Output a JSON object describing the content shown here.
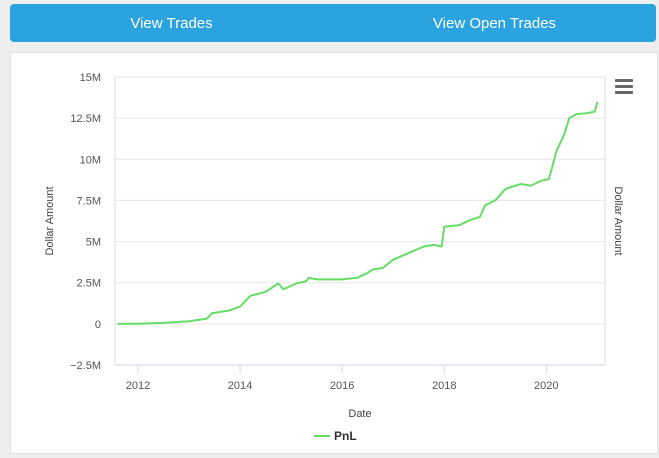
{
  "topbar": {
    "trades_label": "View Trades",
    "open_trades_label": "View Open Trades"
  },
  "menu": {
    "icon": "hamburger-icon"
  },
  "colors": {
    "topbar": "#2aa3de",
    "series": "#66dd66",
    "grid": "#e6e6e6"
  },
  "chart_data": {
    "type": "line",
    "xlabel": "Date",
    "ylabel": "Dollar Amount",
    "ylabel_right": "Dollar Amount",
    "xlim": [
      2011.55,
      2021.15
    ],
    "ylim": [
      -2500000,
      15000000
    ],
    "x_ticks": [
      2012,
      2014,
      2016,
      2018,
      2020
    ],
    "y_ticks": [
      -2500000,
      0,
      2500000,
      5000000,
      7500000,
      10000000,
      12500000,
      15000000
    ],
    "y_tick_labels": [
      "−2.5M",
      "0",
      "2.5M",
      "5M",
      "7.5M",
      "10M",
      "12.5M",
      "15M"
    ],
    "grid": true,
    "legend": "bottom-center",
    "series": [
      {
        "name": "PnL",
        "x": [
          2011.6,
          2012.0,
          2012.5,
          2013.0,
          2013.35,
          2013.45,
          2013.8,
          2014.0,
          2014.2,
          2014.5,
          2014.75,
          2014.85,
          2015.1,
          2015.3,
          2015.35,
          2015.5,
          2015.8,
          2016.0,
          2016.3,
          2016.5,
          2016.6,
          2016.8,
          2017.0,
          2017.3,
          2017.6,
          2017.8,
          2017.95,
          2018.0,
          2018.3,
          2018.5,
          2018.7,
          2018.8,
          2019.0,
          2019.2,
          2019.5,
          2019.7,
          2019.9,
          2020.05,
          2020.2,
          2020.35,
          2020.45,
          2020.6,
          2020.8,
          2020.95,
          2021.0
        ],
        "values": [
          0,
          10000,
          60000,
          160000,
          320000,
          650000,
          820000,
          1050000,
          1700000,
          1950000,
          2450000,
          2100000,
          2450000,
          2600000,
          2800000,
          2700000,
          2700000,
          2700000,
          2800000,
          3100000,
          3300000,
          3400000,
          3900000,
          4300000,
          4700000,
          4800000,
          4700000,
          5900000,
          6000000,
          6300000,
          6500000,
          7200000,
          7500000,
          8200000,
          8500000,
          8400000,
          8700000,
          8800000,
          10500000,
          11500000,
          12500000,
          12750000,
          12800000,
          12900000,
          13500000
        ]
      }
    ]
  }
}
